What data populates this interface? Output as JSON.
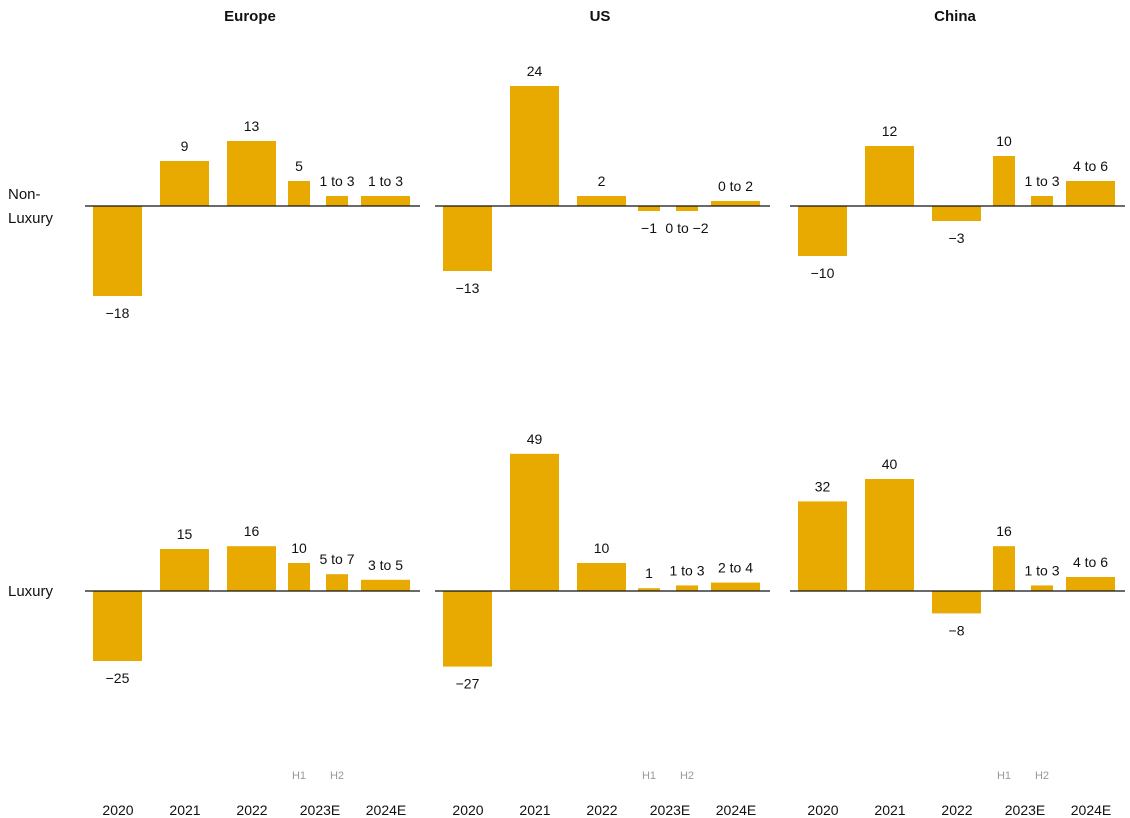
{
  "colors": {
    "bar": "#E8A900",
    "axis": "#111111",
    "half_label": "#999999"
  },
  "row_labels": [
    "Non-\nLuxury",
    "Luxury"
  ],
  "half_labels": [
    "H1",
    "H2"
  ],
  "chart_data": {
    "type": "bar",
    "panels": [
      "Europe",
      "US",
      "China"
    ],
    "rows": [
      "Non-Luxury",
      "Luxury"
    ],
    "categories": [
      "2020",
      "2021",
      "2022",
      "2023E H1",
      "2023E H2",
      "2024E"
    ],
    "tick_labels": [
      "2020",
      "2021",
      "2022",
      "2023E",
      "2024E"
    ],
    "data": {
      "Europe": {
        "Non-Luxury": {
          "values": [
            -18,
            9,
            13,
            5,
            2,
            2
          ],
          "labels": [
            "−18",
            "9",
            "13",
            "5",
            "1 to 3",
            "1 to 3"
          ]
        },
        "Luxury": {
          "values": [
            -25,
            15,
            16,
            10,
            6,
            4
          ],
          "labels": [
            "−25",
            "15",
            "16",
            "10",
            "5 to 7",
            "3 to 5"
          ]
        }
      },
      "US": {
        "Non-Luxury": {
          "values": [
            -13,
            24,
            2,
            -1,
            -1,
            1
          ],
          "labels": [
            "−13",
            "24",
            "2",
            "−1",
            "0 to −2",
            "0 to 2"
          ]
        },
        "Luxury": {
          "values": [
            -27,
            49,
            10,
            1,
            2,
            3
          ],
          "labels": [
            "−27",
            "49",
            "10",
            "1",
            "1 to 3",
            "2 to 4"
          ]
        }
      },
      "China": {
        "Non-Luxury": {
          "values": [
            -10,
            12,
            -3,
            10,
            2,
            5
          ],
          "labels": [
            "−10",
            "12",
            "−3",
            "10",
            "1 to 3",
            "4 to 6"
          ]
        },
        "Luxury": {
          "values": [
            32,
            40,
            -8,
            16,
            2,
            5
          ],
          "labels": [
            "32",
            "40",
            "−8",
            "16",
            "1 to 3",
            "4 to 6"
          ]
        }
      }
    }
  }
}
